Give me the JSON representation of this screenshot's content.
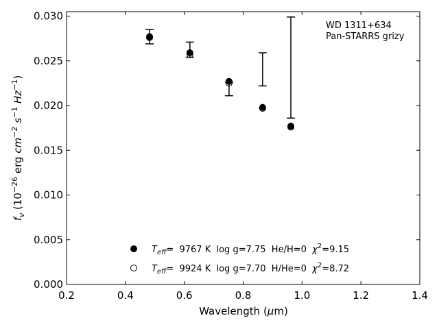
{
  "chart_data": {
    "type": "scatter",
    "xlim": [
      0.2,
      1.4
    ],
    "ylim": [
      0.0,
      0.0305
    ],
    "x_ticks": [
      "0.2",
      "0.4",
      "0.6",
      "0.8",
      "1.0",
      "1.2",
      "1.4"
    ],
    "y_ticks": [
      "0.000",
      "0.005",
      "0.010",
      "0.015",
      "0.020",
      "0.025",
      "0.030"
    ],
    "xlabel": {
      "pre": "Wavelength (",
      "greek": "μ",
      "post": "m)"
    },
    "ylabel": {
      "f": "f",
      "f_sub": "ν",
      "open": " (10",
      "exp1": "−26",
      "erg": " erg ",
      "cm": "cm",
      "exp2": "−2",
      "s": " s",
      "exp3": "−1",
      "hz": " Hz",
      "exp4": "−1",
      "close": ")"
    },
    "annotation": [
      "WD 1311+634",
      "Pan-STARRS grizy"
    ],
    "observed": {
      "x": [
        0.482,
        0.619,
        0.752,
        0.866,
        0.962
      ],
      "y": [
        0.0277,
        0.0262,
        0.0225,
        0.024,
        0.0243
      ],
      "yerr_low": [
        0.0008,
        0.0008,
        0.0014,
        0.0018,
        0.0057
      ],
      "yerr_high": [
        0.0008,
        0.0009,
        0.0001,
        0.0019,
        0.0056
      ]
    },
    "series": [
      {
        "marker": "filled",
        "x": [
          0.482,
          0.619,
          0.752,
          0.866,
          0.962
        ],
        "y": [
          0.0277,
          0.0259,
          0.0227,
          0.0198,
          0.0177
        ],
        "legend": {
          "teff_T": "T",
          "teff_sub": "eff",
          "rest": "=  9767 K  log g=7.75  He/H=0  ",
          "chi": "χ",
          "chi_sup": "2",
          "chi_val": "=9.15"
        }
      },
      {
        "marker": "open",
        "x": [
          0.482,
          0.619,
          0.752,
          0.866,
          0.962
        ],
        "y": [
          0.0276,
          0.0257,
          0.0225,
          0.0197,
          0.0176
        ],
        "legend": {
          "teff_T": "T",
          "teff_sub": "eff",
          "rest": "=  9924 K  log g=7.70  H/He=0  ",
          "chi": "χ",
          "chi_sup": "2",
          "chi_val": "=8.72"
        }
      }
    ]
  }
}
